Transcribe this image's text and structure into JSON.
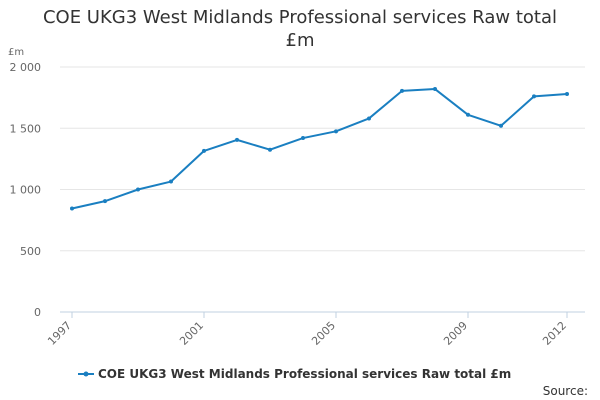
{
  "title_line1": "COE UKG3 West Midlands Professional services Raw total",
  "title_line2": "£m",
  "source": "Source:",
  "colors": {
    "series": "#1a7fc1",
    "grid": "#e6e6e6",
    "axis": "#c0d0e0"
  },
  "chart_data": {
    "type": "line",
    "title": "COE UKG3 West Midlands Professional services Raw total £m",
    "ylabel": "£m",
    "xlabel": "",
    "ylim": [
      0,
      2000
    ],
    "yticks": [
      0,
      500,
      1000,
      1500,
      2000
    ],
    "ytick_labels": [
      "0",
      "500",
      "1 000",
      "1 500",
      "2 000"
    ],
    "xlim": [
      1997,
      2012
    ],
    "xticks": [
      1997,
      2001,
      2005,
      2009,
      2012
    ],
    "xtick_labels": [
      "1997",
      "2001",
      "2005",
      "2009",
      "2012"
    ],
    "grid": true,
    "legend_position": "bottom",
    "x": [
      1997,
      1998,
      1999,
      2000,
      2001,
      2002,
      2003,
      2004,
      2005,
      2006,
      2007,
      2008,
      2009,
      2010,
      2011,
      2012
    ],
    "series": [
      {
        "name": "COE UKG3 West Midlands Professional services Raw total £m",
        "values": [
          845,
          905,
          1000,
          1065,
          1315,
          1405,
          1325,
          1420,
          1475,
          1580,
          1805,
          1820,
          1610,
          1520,
          1760,
          1780
        ]
      }
    ]
  }
}
